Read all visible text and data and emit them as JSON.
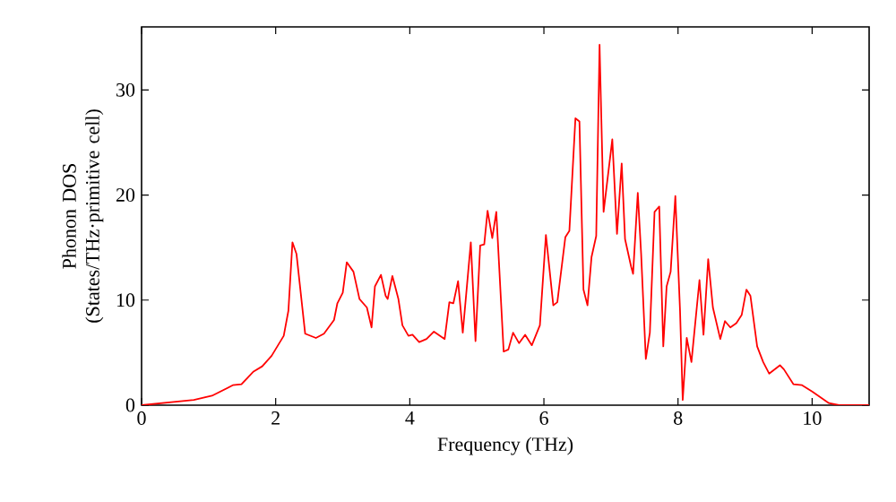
{
  "chart_data": {
    "type": "line",
    "xlabel": "Frequency (THz)",
    "ylabel": "Phonon DOS (States/THz·primitive cell)",
    "xlim": [
      0,
      10.85
    ],
    "ylim": [
      0,
      36
    ],
    "xticks": [
      0,
      2,
      4,
      6,
      8,
      10
    ],
    "yticks": [
      0,
      10,
      20,
      30
    ],
    "grid": false,
    "series": [
      {
        "color": "#ff0000",
        "x": [
          0,
          0.78,
          1.05,
          1.36,
          1.49,
          1.67,
          1.8,
          1.94,
          2.12,
          2.19,
          2.25,
          2.31,
          2.44,
          2.6,
          2.72,
          2.87,
          2.92,
          3.0,
          3.06,
          3.16,
          3.25,
          3.36,
          3.43,
          3.48,
          3.57,
          3.64,
          3.67,
          3.74,
          3.83,
          3.89,
          3.98,
          4.04,
          4.14,
          4.25,
          4.36,
          4.52,
          4.59,
          4.65,
          4.72,
          4.79,
          4.91,
          4.98,
          5.05,
          5.11,
          5.16,
          5.23,
          5.29,
          5.4,
          5.47,
          5.54,
          5.63,
          5.72,
          5.82,
          5.94,
          6.03,
          6.14,
          6.2,
          6.32,
          6.38,
          6.47,
          6.53,
          6.59,
          6.65,
          6.71,
          6.78,
          6.83,
          6.89,
          7.02,
          7.09,
          7.16,
          7.21,
          7.3,
          7.33,
          7.4,
          7.45,
          7.52,
          7.58,
          7.65,
          7.72,
          7.78,
          7.83,
          7.89,
          7.96,
          8.03,
          8.07,
          8.13,
          8.2,
          8.32,
          8.38,
          8.45,
          8.52,
          8.63,
          8.7,
          8.78,
          8.87,
          8.95,
          9.02,
          9.08,
          9.18,
          9.27,
          9.36,
          9.52,
          9.58,
          9.72,
          9.85,
          10.0,
          10.25,
          10.4,
          10.85
        ],
        "values": [
          0,
          0.5,
          0.9,
          1.9,
          2.0,
          3.2,
          3.7,
          4.7,
          6.6,
          9.0,
          15.5,
          14.4,
          6.8,
          6.4,
          6.8,
          8.1,
          9.7,
          10.7,
          13.6,
          12.7,
          10.1,
          9.3,
          7.4,
          11.3,
          12.4,
          10.4,
          10.1,
          12.3,
          10.1,
          7.6,
          6.6,
          6.7,
          6.0,
          6.3,
          7.0,
          6.3,
          9.8,
          9.7,
          11.8,
          6.9,
          15.5,
          6.1,
          15.2,
          15.3,
          18.5,
          15.9,
          18.4,
          5.1,
          5.3,
          6.9,
          5.9,
          6.7,
          5.7,
          7.6,
          16.2,
          9.5,
          9.8,
          16.0,
          16.6,
          27.3,
          27.0,
          11.0,
          9.5,
          14.1,
          16.1,
          34.3,
          18.4,
          25.3,
          16.3,
          23.0,
          15.8,
          13.2,
          12.5,
          20.2,
          14.4,
          4.4,
          6.9,
          18.4,
          18.9,
          5.6,
          11.3,
          12.7,
          19.9,
          9.0,
          0.5,
          6.4,
          4.1,
          11.9,
          6.7,
          13.9,
          9.3,
          6.3,
          8.0,
          7.4,
          7.8,
          8.6,
          11.0,
          10.4,
          5.6,
          4.1,
          3.0,
          3.8,
          3.4,
          2.0,
          1.9,
          1.3,
          0.2,
          0,
          0
        ]
      }
    ]
  }
}
